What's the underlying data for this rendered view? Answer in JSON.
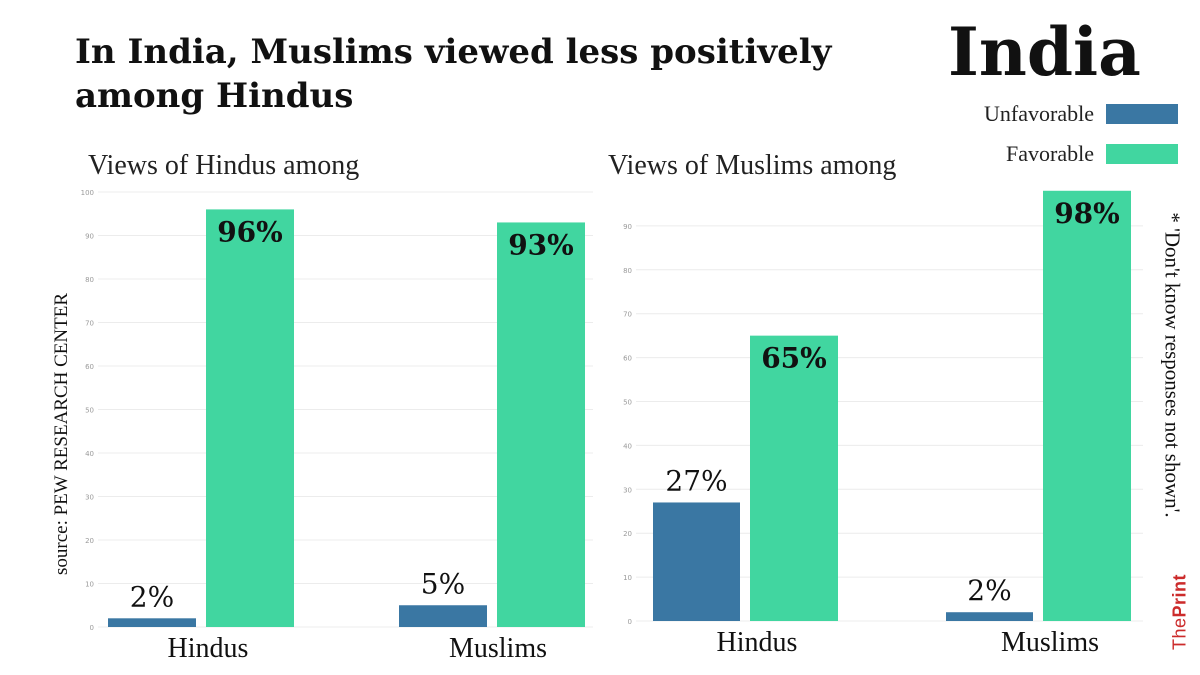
{
  "headline": "In India, Muslims viewed less positively among Hindus",
  "country": "India",
  "legend": [
    {
      "label": "Unfavorable",
      "color": "#3a77a3"
    },
    {
      "label": "Favorable",
      "color": "#41d6a0"
    }
  ],
  "source": "source: PEW RESEARCH CENTER",
  "note": "* 'Don't know responses not shown'.",
  "brand": {
    "the": "The",
    "print": "Print"
  },
  "colors": {
    "unfavorable": "#3a77a3",
    "favorable": "#41d6a0",
    "grid": "#ececec",
    "tick": "#9a9a9a"
  },
  "chart_data": [
    {
      "type": "bar",
      "title": "Views of Hindus among",
      "categories": [
        "Hindus",
        "Muslims"
      ],
      "series": [
        {
          "name": "Unfavorable",
          "values": [
            2,
            5
          ],
          "labels": [
            "2%",
            "5%"
          ]
        },
        {
          "name": "Favorable",
          "values": [
            96,
            93
          ],
          "labels": [
            "96%",
            "93%"
          ]
        }
      ],
      "ylim": [
        0,
        100
      ],
      "yticks": [
        0,
        10,
        20,
        30,
        40,
        50,
        60,
        70,
        80,
        90,
        100
      ],
      "grid": true
    },
    {
      "type": "bar",
      "title": "Views of Muslims among",
      "categories": [
        "Hindus",
        "Muslims"
      ],
      "series": [
        {
          "name": "Unfavorable",
          "values": [
            27,
            2
          ],
          "labels": [
            "27%",
            "2%"
          ]
        },
        {
          "name": "Favorable",
          "values": [
            65,
            98
          ],
          "labels": [
            "65%",
            "98%"
          ]
        }
      ],
      "ylim": [
        0,
        100
      ],
      "yticks": [
        0,
        10,
        20,
        30,
        40,
        50,
        60,
        70,
        80,
        90
      ],
      "grid": true
    }
  ]
}
